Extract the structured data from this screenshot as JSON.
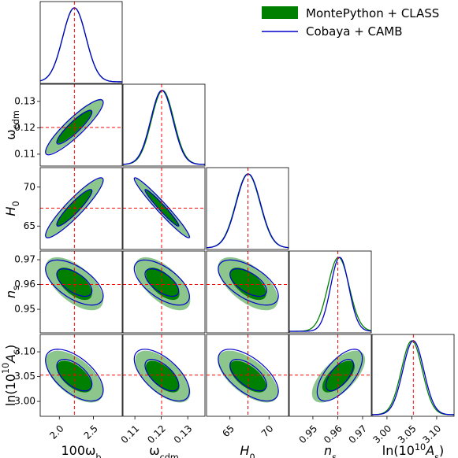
{
  "chart_data": {
    "type": "corner",
    "title": "",
    "legend": {
      "placement": "top-right",
      "entries": [
        {
          "label": "MontePython + CLASS",
          "color": "#008000",
          "style": "filled"
        },
        {
          "label": "Cobaya + CAMB",
          "color": "#0000cc",
          "style": "line"
        }
      ]
    },
    "truth_line_color": "#ff0000",
    "params": [
      {
        "key": "ob",
        "label": "100ω_b",
        "label_parts": [
          {
            "t": "100ω"
          },
          {
            "t": "b",
            "sub": true
          }
        ],
        "ticks": [
          2.0,
          2.5
        ],
        "tick_labels": [
          "2.0",
          "2.5"
        ],
        "range": [
          1.72,
          2.92
        ],
        "fiducial": 2.22,
        "mean": 2.22,
        "sigma": 0.17
      },
      {
        "key": "oc",
        "label": "ω_cdm",
        "label_parts": [
          {
            "t": "ω"
          },
          {
            "t": "cdm",
            "sub": true
          }
        ],
        "ticks": [
          0.11,
          0.12,
          0.13
        ],
        "tick_labels": [
          "0.11",
          "0.12",
          "0.13"
        ],
        "range": [
          0.1055,
          0.1365
        ],
        "fiducial": 0.1201,
        "mean": 0.1205,
        "sigma": 0.0042
      },
      {
        "key": "H0",
        "label": "H_0",
        "label_parts": [
          {
            "t": "H",
            "it": true
          },
          {
            "t": "0",
            "sub": true
          }
        ],
        "ticks": [
          65,
          70
        ],
        "tick_labels": [
          "65",
          "70"
        ],
        "range": [
          62.0,
          72.5
        ],
        "fiducial": 67.3,
        "mean": 67.3,
        "sigma": 1.55
      },
      {
        "key": "ns",
        "label": "n_s",
        "label_parts": [
          {
            "t": "n",
            "it": true
          },
          {
            "t": "s",
            "sub": true
          }
        ],
        "ticks": [
          0.95,
          0.96,
          0.97
        ],
        "tick_labels": [
          "0.95",
          "0.96",
          "0.97"
        ],
        "range": [
          0.9405,
          0.9735
        ],
        "fiducial": 0.96,
        "mean": 0.9603,
        "sigma": 0.0043
      },
      {
        "key": "As",
        "label": "ln(10^10 A_s)",
        "label_parts": [
          {
            "t": "ln(10"
          },
          {
            "t": "10",
            "sup": true
          },
          {
            "t": "A",
            "it": true
          },
          {
            "t": "s",
            "sub": true
          },
          {
            "t": ")"
          }
        ],
        "ticks": [
          3.0,
          3.05,
          3.1
        ],
        "tick_labels": [
          "3.00",
          "3.05",
          "3.10"
        ],
        "range": [
          2.97,
          3.135
        ],
        "fiducial": 3.053,
        "mean": 3.05,
        "sigma": 0.021
      }
    ],
    "correlations": {
      "oc|ob": 0.9,
      "H0|ob": 0.92,
      "H0|oc": -0.97,
      "ns|ob": -0.6,
      "ns|oc": -0.62,
      "ns|H0": -0.6,
      "As|ob": -0.58,
      "As|oc": -0.62,
      "As|H0": -0.62,
      "As|ns": 0.65
    },
    "cobaya_shift": {
      "ob": 0.0,
      "oc": -0.0003,
      "H0": 0.05,
      "ns": 0.0005,
      "As": 0.003
    },
    "cobaya_sigma_scale": {
      "ns": 0.85
    }
  }
}
